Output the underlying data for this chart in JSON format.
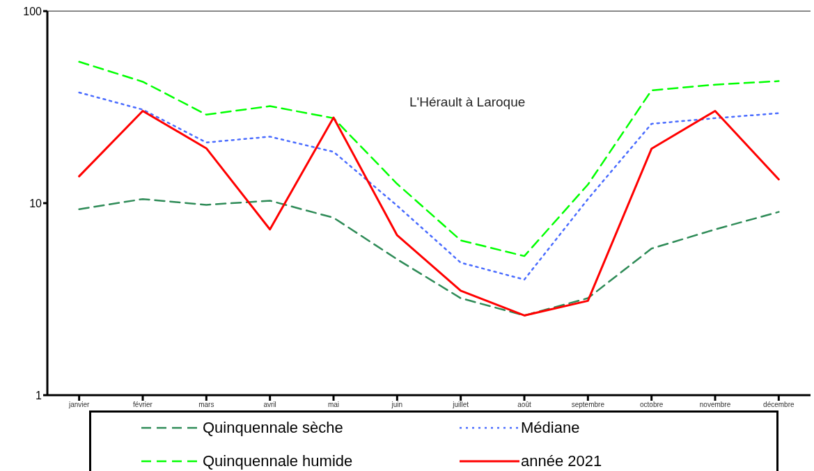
{
  "chart_data": {
    "type": "line",
    "title": "L'Hérault à Laroque",
    "categories": [
      "janvier",
      "février",
      "mars",
      "avril",
      "mai",
      "juin",
      "juillet",
      "août",
      "septembre",
      "octobre",
      "novembre",
      "décembre"
    ],
    "series": [
      {
        "name": "Quinquennale sèche",
        "color": "#2e8b57",
        "line_style": "dashed",
        "values": [
          9.3,
          10.5,
          9.8,
          10.3,
          8.4,
          5.1,
          3.2,
          2.6,
          3.2,
          5.8,
          7.3,
          9.0
        ]
      },
      {
        "name": "Médiane",
        "color": "#4a6cff",
        "line_style": "dotted",
        "values": [
          37.7,
          30.7,
          20.7,
          22.2,
          18.5,
          9.7,
          4.9,
          4.0,
          10.5,
          25.9,
          27.7,
          29.4
        ]
      },
      {
        "name": "Quinquennale humide",
        "color": "#00ff00",
        "line_style": "dashed",
        "values": [
          54.5,
          42.9,
          28.9,
          32.0,
          27.7,
          12.6,
          6.4,
          5.3,
          12.5,
          38.7,
          41.4,
          43.2
        ]
      },
      {
        "name": "année 2021",
        "color": "#ff0000",
        "line_style": "solid",
        "values": [
          13.8,
          30.2,
          19.3,
          7.3,
          27.9,
          6.8,
          3.5,
          2.6,
          3.1,
          19.2,
          30.2,
          13.3
        ]
      }
    ],
    "log": true,
    "ylim": [
      1,
      100
    ],
    "yticks": [
      1,
      10,
      100
    ],
    "grid": false,
    "legend": "bottom",
    "marker": "none"
  }
}
